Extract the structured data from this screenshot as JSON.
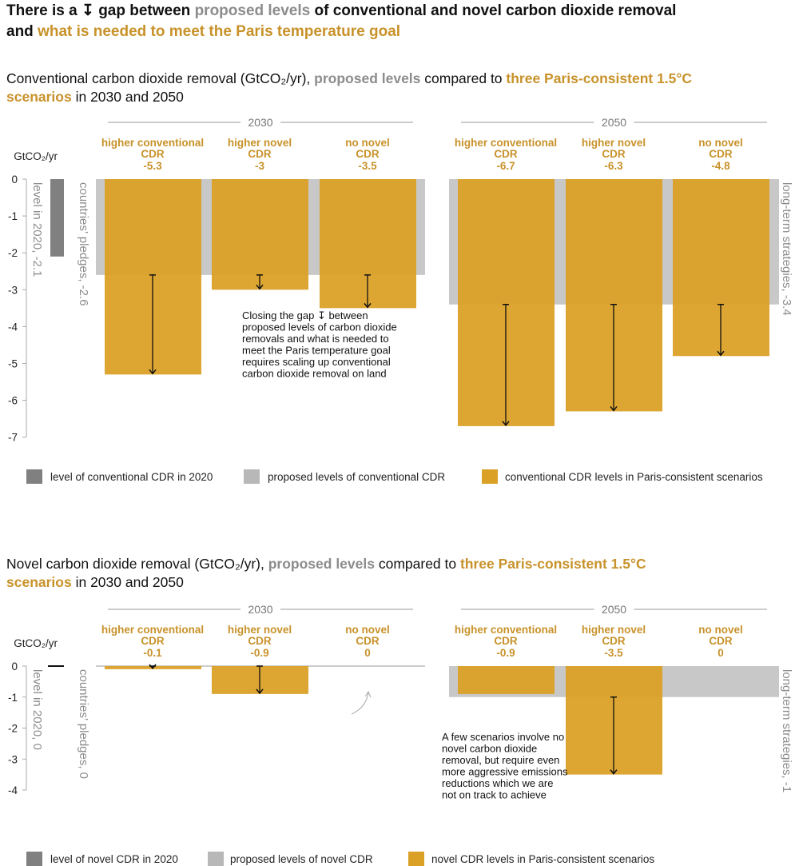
{
  "title": {
    "part1": "There is a ",
    "arrow": "↧",
    "part2": " gap between ",
    "part3": "proposed levels",
    "part4": " of conventional and novel carbon dioxide removal",
    "part5": "and ",
    "part6": "what is needed to meet the Paris temperature goal"
  },
  "colors": {
    "level_2020": "#808080",
    "proposed": "#c8c8c8",
    "scenario": "#dba026",
    "accent_text": "#c8922a"
  },
  "chart_data": [
    {
      "type": "bar",
      "subtitle": {
        "a": "Conventional carbon dioxide removal (GtCO₂/yr), ",
        "b": "proposed levels",
        "c": " compared to ",
        "d": "three Paris-consistent 1.5°C",
        "e": "scenarios",
        "f": " in 2030 and 2050"
      },
      "ylabel": "GtCO₂/yr",
      "ylim": [
        -7,
        0
      ],
      "yticks": [
        "0",
        "-1",
        "-2",
        "-3",
        "-4",
        "-5",
        "-6",
        "-7"
      ],
      "level_2020": {
        "value": -2.1,
        "label": "level in 2020, -2.1"
      },
      "groups": [
        {
          "year": "2030",
          "proposed": -2.6,
          "proposed_label": "countries’ pledges, -2.6",
          "scenarios": [
            {
              "name1": "higher conventional",
              "name2": "CDR",
              "value": -5.3,
              "value_label": "-5.3"
            },
            {
              "name1": "higher novel",
              "name2": "CDR",
              "value": -3,
              "value_label": "-3"
            },
            {
              "name1": "no novel",
              "name2": "CDR",
              "value": -3.5,
              "value_label": "-3.5"
            }
          ]
        },
        {
          "year": "2050",
          "proposed": -3.4,
          "proposed_label": "long-term strategies, -3.4",
          "scenarios": [
            {
              "name1": "higher conventional",
              "name2": "CDR",
              "value": -6.7,
              "value_label": "-6.7"
            },
            {
              "name1": "higher novel",
              "name2": "CDR",
              "value": -6.3,
              "value_label": "-6.3"
            },
            {
              "name1": "no novel",
              "name2": "CDR",
              "value": -4.8,
              "value_label": "-4.8"
            }
          ]
        }
      ],
      "annotation": [
        "Closing the gap ↧ between",
        "proposed levels of carbon dioxide",
        "removals and what is needed to",
        "meet the Paris temperature goal",
        "requires scaling up conventional",
        "carbon dioxide removal on land"
      ],
      "legend": [
        "level of conventional CDR in 2020",
        "proposed levels of conventional CDR",
        "conventional CDR levels in Paris-consistent scenarios"
      ]
    },
    {
      "type": "bar",
      "subtitle": {
        "a": "Novel carbon dioxide removal (GtCO₂/yr), ",
        "b": "proposed levels",
        "c": " compared to ",
        "d": "three Paris-consistent 1.5°C",
        "e": "scenarios",
        "f": " in 2030 and 2050"
      },
      "ylabel": "GtCO₂/yr",
      "ylim": [
        -4,
        0
      ],
      "yticks": [
        "0",
        "-1",
        "-2",
        "-3",
        "-4"
      ],
      "level_2020": {
        "value": 0,
        "label": "level in 2020, 0"
      },
      "groups": [
        {
          "year": "2030",
          "proposed": 0,
          "proposed_label": "countries’ pledges, 0",
          "scenarios": [
            {
              "name1": "higher conventional",
              "name2": "CDR",
              "value": -0.1,
              "value_label": "-0.1"
            },
            {
              "name1": "higher novel",
              "name2": "CDR",
              "value": -0.9,
              "value_label": "-0.9"
            },
            {
              "name1": "no novel",
              "name2": "CDR",
              "value": 0,
              "value_label": "0"
            }
          ]
        },
        {
          "year": "2050",
          "proposed": -1,
          "proposed_label": "long-term strategies, -1",
          "scenarios": [
            {
              "name1": "higher conventional",
              "name2": "CDR",
              "value": -0.9,
              "value_label": "-0.9"
            },
            {
              "name1": "higher novel",
              "name2": "CDR",
              "value": -3.5,
              "value_label": "-3.5"
            },
            {
              "name1": "no novel",
              "name2": "CDR",
              "value": 0,
              "value_label": "0"
            }
          ]
        }
      ],
      "annotation": [
        "A few scenarios involve no",
        "novel carbon dioxide",
        "removal, but require even",
        "more aggressive emissions",
        "reductions which we are",
        "not on track to achieve"
      ],
      "legend": [
        "level of novel CDR in 2020",
        "proposed levels of novel CDR",
        "novel CDR levels in Paris-consistent scenarios"
      ]
    }
  ]
}
